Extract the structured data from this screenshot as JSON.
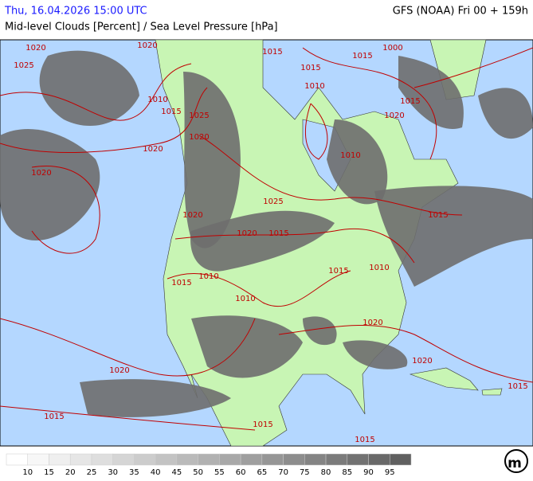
{
  "header": {
    "date": "Thu, 16.04.2026 15:00 UTC",
    "model": "GFS (NOAA) Fri 00 + 159h",
    "title": "Mid-level Clouds [Percent] / Sea Level Pressure [hPa]"
  },
  "map": {
    "isobar_labels": [
      "1020",
      "1025",
      "1020",
      "1015",
      "1015",
      "1015",
      "1000",
      "1010",
      "1015",
      "1025",
      "1020",
      "1010",
      "1015",
      "1020",
      "1020",
      "1010",
      "1020",
      "1025",
      "1020",
      "1015",
      "1020",
      "1015",
      "1010",
      "1015",
      "1015",
      "1010",
      "1010",
      "1020",
      "1020",
      "1020",
      "1015",
      "1015",
      "1015",
      "1015"
    ]
  },
  "legend": {
    "values": [
      10,
      15,
      20,
      25,
      30,
      35,
      40,
      45,
      50,
      55,
      60,
      65,
      70,
      75,
      80,
      85,
      90,
      95
    ],
    "colors": [
      "#ffffff",
      "#f7f7f7",
      "#efefef",
      "#e6e6e6",
      "#dedede",
      "#d5d5d5",
      "#cccccc",
      "#c3c3c3",
      "#bababa",
      "#b1b1b1",
      "#a8a8a8",
      "#9f9f9f",
      "#969696",
      "#8d8d8d",
      "#848484",
      "#7b7b7b",
      "#727272",
      "#696969",
      "#606060"
    ]
  },
  "logo": "m"
}
